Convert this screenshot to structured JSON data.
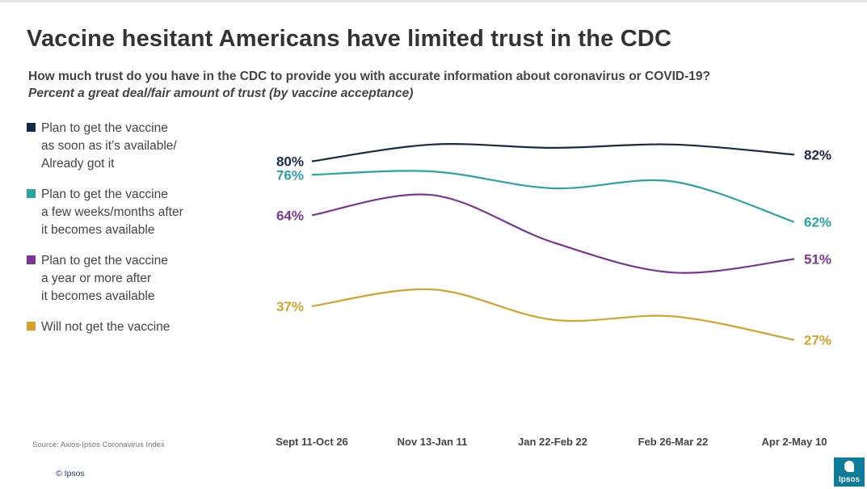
{
  "header": {
    "title": "Vaccine hesitant Americans have limited trust in the CDC",
    "subtitle": "How much trust do you have in the CDC to provide you with accurate information about coronavirus or COVID-19?",
    "subtitle2": "Percent a great deal/fair amount of trust (by vaccine acceptance)"
  },
  "legend": [
    {
      "label": "Plan to get the vaccine\nas soon as it’s available/\nAlready got it",
      "color": "#162a4a"
    },
    {
      "label": "Plan to get the vaccine\na few weeks/months after\nit becomes available",
      "color": "#2aa3a3"
    },
    {
      "label": "Plan to get the vaccine\na year or more after\nit becomes available",
      "color": "#7c3597"
    },
    {
      "label": "Will not get the vaccine",
      "color": "#d4a22d"
    }
  ],
  "chart_data": {
    "type": "line",
    "categories": [
      "Sept 11-Oct 26",
      "Nov 13-Jan 11",
      "Jan 22-Feb 22",
      "Feb 26-Mar 22",
      "Apr 2-May 10"
    ],
    "series": [
      {
        "values": [
          80,
          85,
          84,
          85,
          82
        ],
        "color": "#162a4a",
        "first_label": "80%",
        "last_label": "82%"
      },
      {
        "values": [
          76,
          77,
          72,
          74,
          62
        ],
        "color": "#2aa3a3",
        "first_label": "76%",
        "last_label": "62%"
      },
      {
        "values": [
          64,
          70,
          56,
          47,
          51
        ],
        "color": "#7c3597",
        "first_label": "64%",
        "last_label": "51%"
      },
      {
        "values": [
          37,
          42,
          33,
          34,
          27
        ],
        "color": "#d4a22d",
        "first_label": "37%",
        "last_label": "27%"
      }
    ],
    "ylim": [
      0,
      100
    ],
    "grid": false,
    "legend_position": "left"
  },
  "footer": {
    "source": "Source: Axios-Ipsos Coronavirus Index",
    "copyright": "© Ipsos",
    "logo_text": "Ipsos"
  }
}
